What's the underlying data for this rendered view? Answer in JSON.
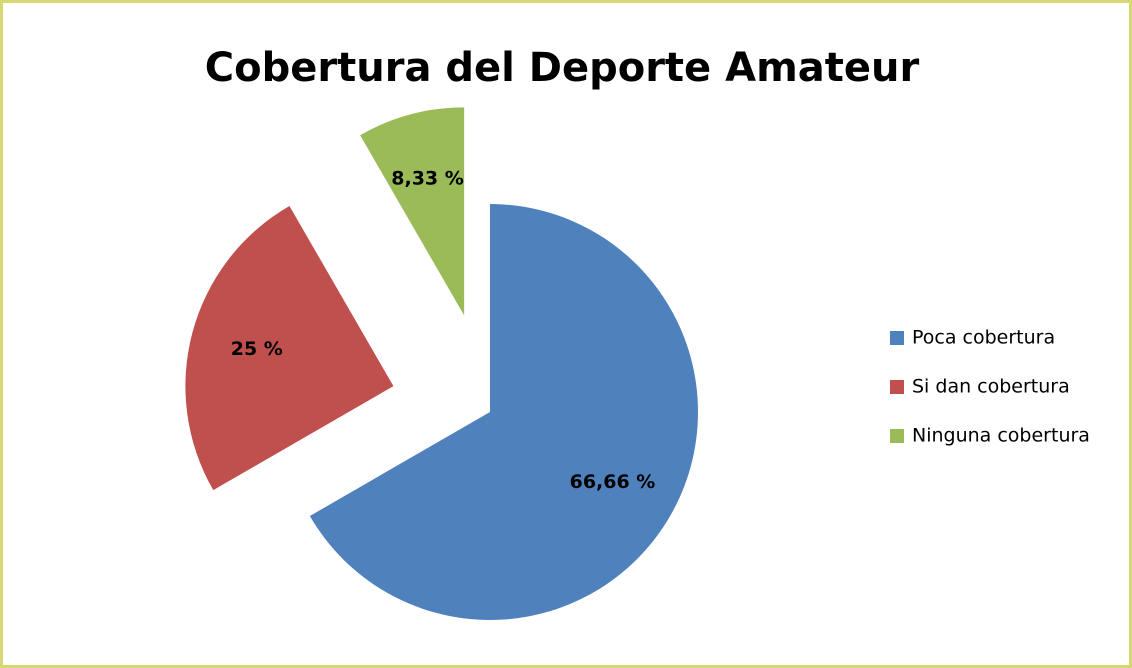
{
  "chart_data": {
    "type": "pie",
    "title": "Cobertura del Deporte Amateur",
    "categories": [
      "Poca cobertura",
      "Si dan cobertura",
      "Ninguna cobertura"
    ],
    "values": [
      66.66,
      25,
      8.33
    ],
    "value_labels": [
      "66,66 %",
      "25 %",
      "8,33 %"
    ],
    "colors": [
      "#4f81bd",
      "#c0504d",
      "#9bbb59"
    ],
    "exploded": [
      false,
      true,
      true
    ],
    "legend": "right"
  }
}
